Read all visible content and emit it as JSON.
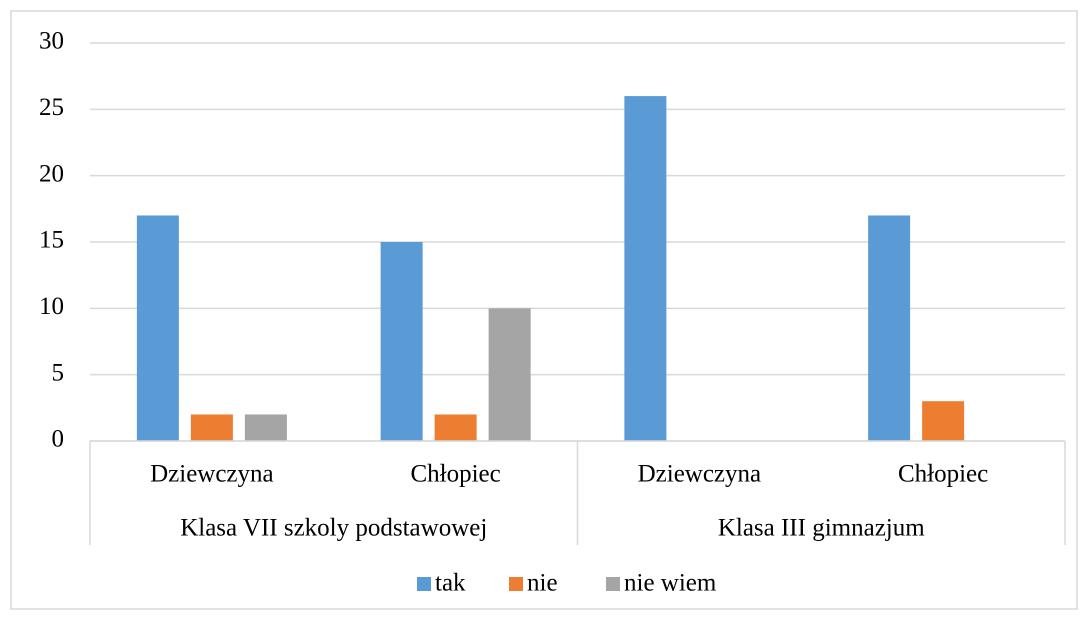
{
  "chart_data": {
    "type": "bar",
    "groups": [
      {
        "name": "Klasa VII szkoly podstawowej",
        "categories": [
          "Dziewczyna",
          "Chłopiec"
        ]
      },
      {
        "name": "Klasa III gimnazjum",
        "categories": [
          "Dziewczyna",
          "Chłopiec"
        ]
      }
    ],
    "series": [
      {
        "name": "tak",
        "color": "#5b9bd5",
        "values": [
          17,
          15,
          26,
          17
        ]
      },
      {
        "name": "nie",
        "color": "#ed7d31",
        "values": [
          2,
          2,
          0,
          3
        ]
      },
      {
        "name": "nie wiem",
        "color": "#a5a5a5",
        "values": [
          2,
          10,
          0,
          0
        ]
      }
    ],
    "ylim": [
      0,
      30
    ],
    "yticks": [
      0,
      5,
      10,
      15,
      20,
      25,
      30
    ],
    "grid": true,
    "legend": "bottom"
  }
}
